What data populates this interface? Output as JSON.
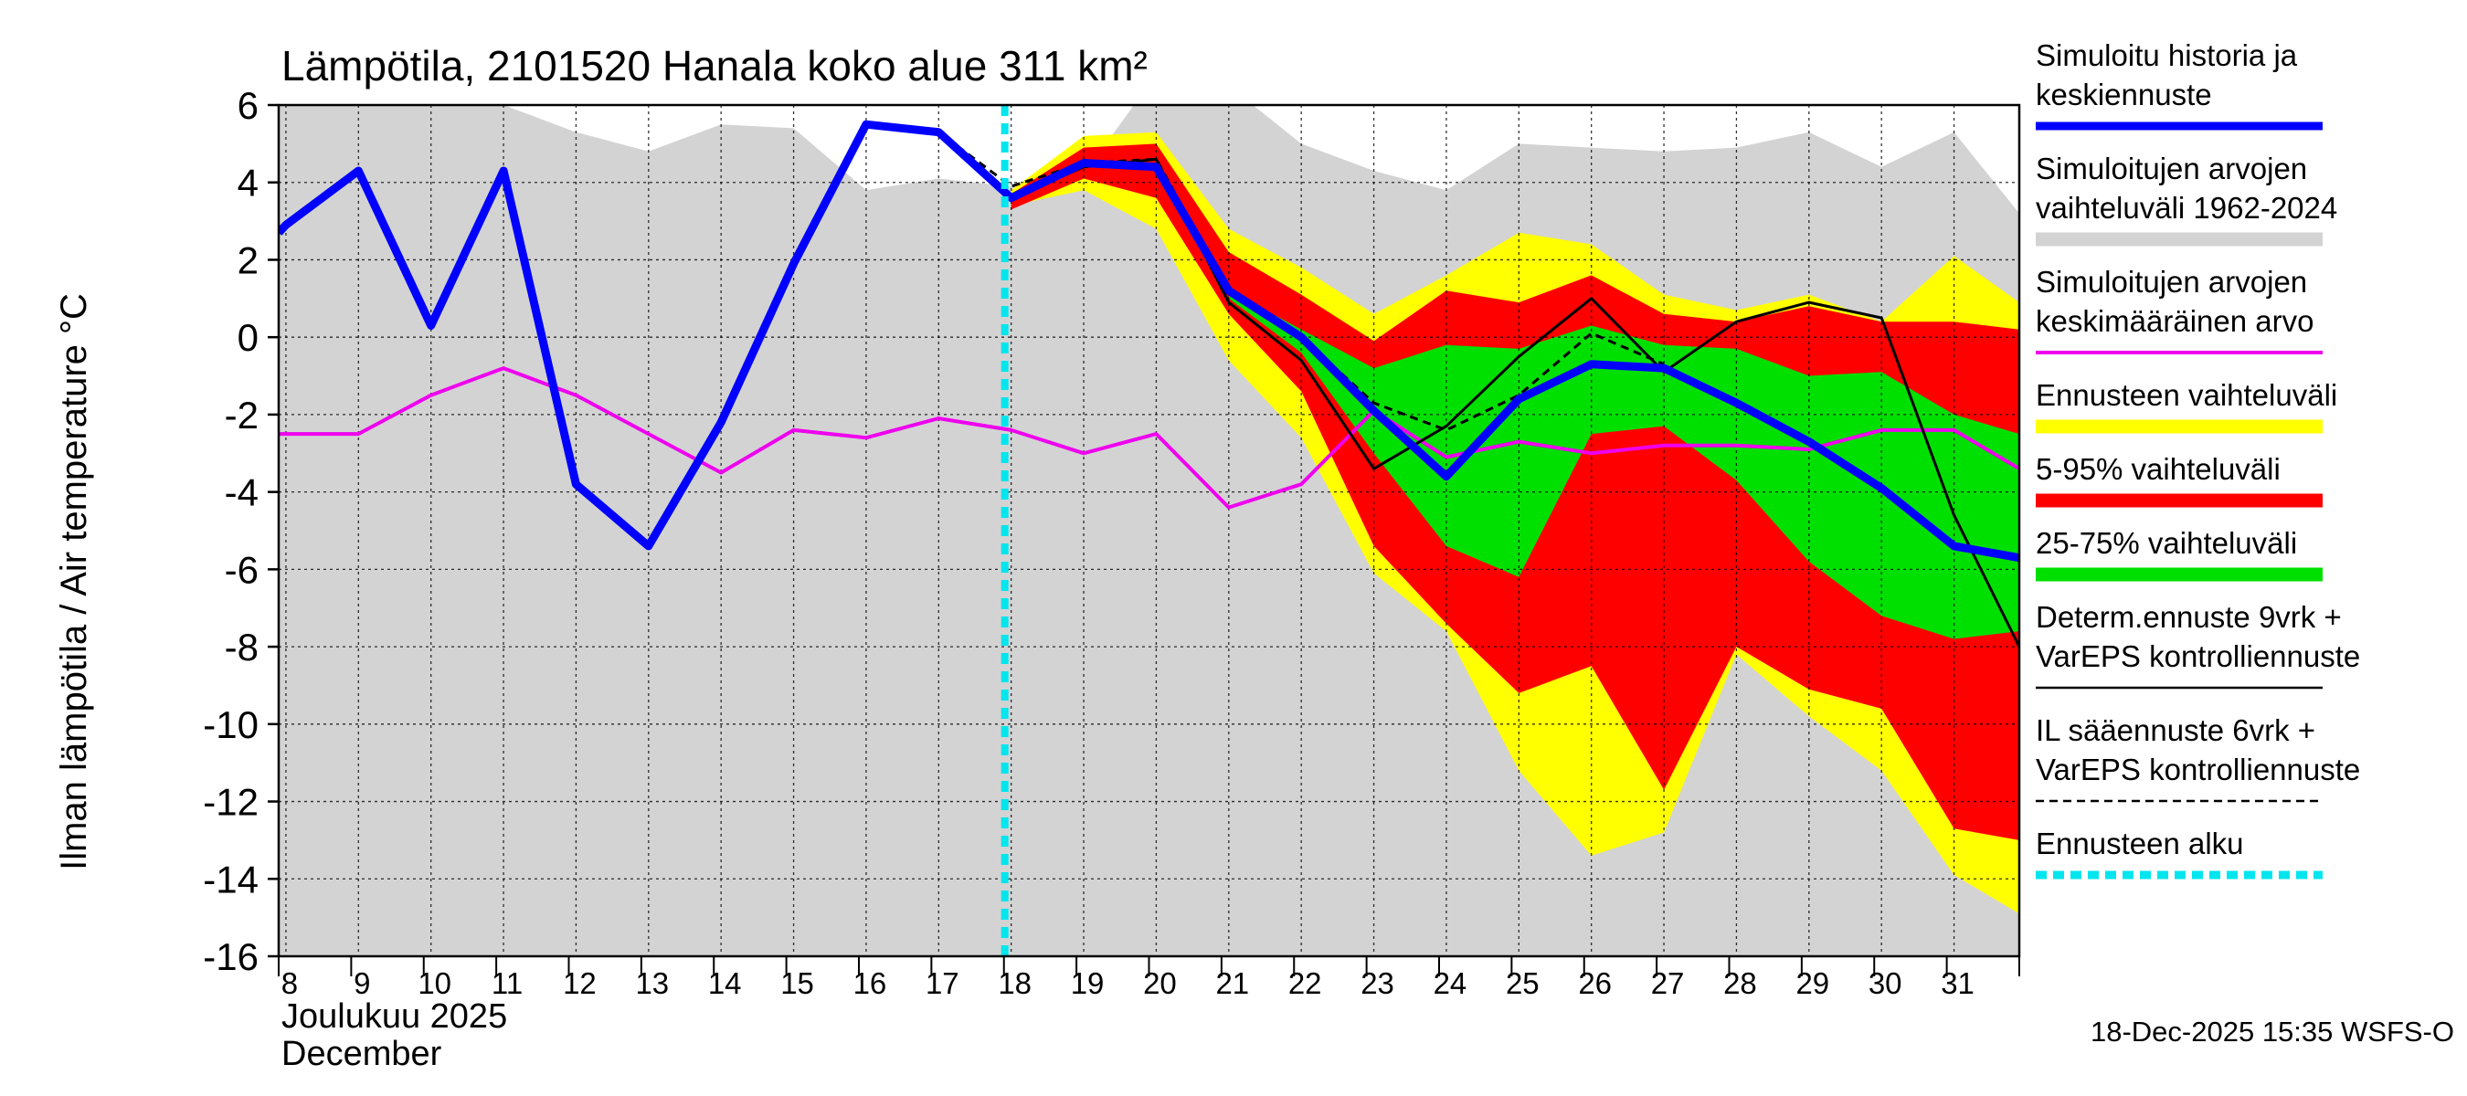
{
  "chart_data": {
    "type": "area",
    "title": "Lämpötila, 2101520 Hanala koko alue 311 km²",
    "ylabel": "Ilman lämpötila / Air temperature    °C",
    "xlabel_fi": "Joulukuu  2025",
    "xlabel_en": "December",
    "footer": "18-Dec-2025 15:35 WSFS-O",
    "ylim": [
      -16,
      6
    ],
    "yticks": [
      6,
      4,
      2,
      0,
      -2,
      -4,
      -6,
      -8,
      -10,
      -12,
      -14,
      -16
    ],
    "ytick_labels": [
      "6",
      "4",
      "2",
      "0",
      "-2",
      "-4",
      "-6",
      "-8",
      "-10",
      "-12",
      "-14",
      "-16"
    ],
    "xlim": [
      7.9,
      31.9
    ],
    "xticks": [
      8,
      9,
      10,
      11,
      12,
      13,
      14,
      15,
      16,
      17,
      18,
      19,
      20,
      21,
      22,
      23,
      24,
      25,
      26,
      27,
      28,
      29,
      30,
      31
    ],
    "xtick_labels": [
      "8",
      "9",
      "10",
      "11",
      "12",
      "13",
      "14",
      "15",
      "16",
      "17",
      "18",
      "19",
      "20",
      "21",
      "22",
      "23",
      "24",
      "25",
      "26",
      "27",
      "28",
      "29",
      "30",
      "31"
    ],
    "forecast_start": 18,
    "colors": {
      "hist_range": "#d3d3d3",
      "forecast_range": "#ffff00",
      "p5_95": "#ff0000",
      "p25_75": "#00e000",
      "sim": "#0000ff",
      "mean": "#ee00ee",
      "determ": "#000000",
      "il": "#000000",
      "start": "#00e5ee"
    },
    "legend": [
      {
        "key": "sim",
        "label": "Simuloitu historia ja\nkeskiennuste"
      },
      {
        "key": "hist_range",
        "label": "Simuloitujen arvojen\nvaihteluväli 1962-2024"
      },
      {
        "key": "mean",
        "label": "Simuloitujen arvojen\nkeskimääräinen arvo"
      },
      {
        "key": "forecast_range",
        "label": "Ennusteen vaihteluväli"
      },
      {
        "key": "p5_95",
        "label": "5-95% vaihteluväli"
      },
      {
        "key": "p25_75",
        "label": "25-75% vaihteluväli"
      },
      {
        "key": "determ",
        "label": "Determ.ennuste 9vrk +\nVarEPS kontrolliennuste"
      },
      {
        "key": "il",
        "label": "IL sääennuste 6vrk  +\nVarEPS kontrolliennuste"
      },
      {
        "key": "start",
        "label": "Ennusteen alku"
      }
    ],
    "series": [
      {
        "key": "hist_range",
        "name": "Simuloitujen arvojen vaihteluväli 1962-2024",
        "x": [
          7.9,
          8,
          9,
          10,
          11,
          12,
          13,
          14,
          15,
          16,
          17,
          18,
          19,
          20,
          21,
          22,
          23,
          24,
          25,
          26,
          27,
          28,
          29,
          30,
          31,
          31.9
        ],
        "upper": [
          6,
          6,
          6,
          6,
          6,
          5.3,
          4.8,
          5.5,
          5.4,
          3.8,
          4.1,
          3.9,
          4.2,
          6.8,
          6.5,
          5.0,
          4.3,
          3.8,
          5.0,
          4.9,
          4.8,
          4.9,
          5.3,
          4.4,
          5.3,
          3.2
        ],
        "lower": [
          -16,
          -16,
          -16,
          -16,
          -16,
          -16,
          -16,
          -16,
          -16,
          -16,
          -16,
          -16,
          -16,
          -16,
          -16,
          -16,
          -16,
          -16,
          -16,
          -16,
          -16,
          -16,
          -16,
          -16,
          -16,
          -16
        ]
      },
      {
        "key": "forecast_range",
        "name": "Ennusteen vaihteluväli",
        "x": [
          18,
          19,
          20,
          21,
          22,
          23,
          24,
          25,
          26,
          27,
          28,
          29,
          30,
          31,
          31.9
        ],
        "upper": [
          3.8,
          5.2,
          5.3,
          2.8,
          1.8,
          0.6,
          1.6,
          2.7,
          2.4,
          1.1,
          0.7,
          1.1,
          0.4,
          2.1,
          0.9
        ],
        "lower": [
          3.4,
          3.8,
          2.8,
          -0.6,
          -2.6,
          -6.1,
          -7.6,
          -11.2,
          -13.4,
          -12.8,
          -8.2,
          -9.8,
          -11.2,
          -13.9,
          -14.9
        ]
      },
      {
        "key": "p5_95",
        "name": "5-95% vaihteluväli",
        "x": [
          18,
          19,
          20,
          21,
          22,
          23,
          24,
          25,
          26,
          27,
          28,
          29,
          30,
          31,
          31.9
        ],
        "upper": [
          3.7,
          4.9,
          5.0,
          2.2,
          1.1,
          -0.1,
          1.2,
          0.9,
          1.6,
          0.6,
          0.4,
          0.8,
          0.4,
          0.4,
          0.2
        ],
        "lower": [
          3.3,
          4.1,
          3.6,
          0.6,
          -1.4,
          -5.4,
          -7.4,
          -9.2,
          -8.5,
          -11.7,
          -8.0,
          -9.1,
          -9.6,
          -12.7,
          -13.0
        ]
      },
      {
        "key": "p25_75",
        "name": "25-75% vaihteluväli",
        "x": [
          21,
          22,
          23,
          24,
          25,
          26,
          27,
          28,
          29,
          30,
          31,
          31.9
        ],
        "upper": [
          1.2,
          0.2,
          -0.8,
          -0.2,
          -0.3,
          0.3,
          -0.2,
          -0.3,
          -1.0,
          -0.9,
          -2.0,
          -2.5
        ],
        "lower": [
          1.0,
          -0.4,
          -3.0,
          -5.4,
          -6.2,
          -2.5,
          -2.3,
          -3.7,
          -5.8,
          -7.2,
          -7.8,
          -7.6
        ]
      },
      {
        "key": "mean",
        "name": "Simuloitujen arvojen keskimääräinen arvo",
        "x": [
          7.9,
          8,
          9,
          10,
          11,
          12,
          13,
          14,
          15,
          16,
          17,
          18,
          19,
          20,
          21,
          22,
          23,
          24,
          25,
          26,
          27,
          28,
          29,
          30,
          31,
          31.9
        ],
        "y": [
          -2.5,
          -2.5,
          -2.5,
          -1.5,
          -0.8,
          -1.5,
          -2.5,
          -3.5,
          -2.4,
          -2.6,
          -2.1,
          -2.4,
          -3.0,
          -2.5,
          -4.4,
          -3.8,
          -1.9,
          -3.1,
          -2.7,
          -3.0,
          -2.8,
          -2.8,
          -2.9,
          -2.4,
          -2.4,
          -3.4
        ]
      },
      {
        "key": "determ",
        "name": "Determ.ennuste 9vrk + VarEPS kontrolliennuste",
        "x": [
          16,
          17,
          18,
          19,
          20,
          21,
          22,
          23,
          24,
          25,
          26,
          27,
          28,
          29,
          30,
          31,
          31.9
        ],
        "y": [
          5.5,
          5.3,
          3.6,
          4.4,
          4.6,
          0.9,
          -0.6,
          -3.4,
          -2.3,
          -0.5,
          1.0,
          -0.9,
          0.4,
          0.9,
          0.5,
          -4.6,
          -8.0
        ]
      },
      {
        "key": "il",
        "name": "IL sääennuste 6vrk + VarEPS kontrolliennuste",
        "x": [
          16,
          17,
          18,
          19,
          20,
          21,
          22,
          23,
          24,
          25,
          26,
          27
        ],
        "y": [
          5.5,
          5.3,
          3.9,
          4.5,
          4.6,
          1.2,
          0.0,
          -1.7,
          -2.4,
          -1.5,
          0.1,
          -0.7
        ]
      },
      {
        "key": "sim",
        "name": "Simuloitu historia ja keskiennuste",
        "x": [
          7.9,
          8,
          9,
          10,
          11,
          12,
          13,
          14,
          15,
          16,
          17,
          18,
          19,
          20,
          21,
          22,
          23,
          24,
          25,
          26,
          27,
          28,
          29,
          30,
          31,
          31.9
        ],
        "y": [
          2.7,
          2.9,
          4.3,
          0.3,
          4.3,
          -3.8,
          -5.4,
          -2.2,
          1.9,
          5.5,
          5.3,
          3.6,
          4.5,
          4.4,
          1.2,
          0.0,
          -1.9,
          -3.6,
          -1.6,
          -0.7,
          -0.8,
          -1.7,
          -2.7,
          -3.9,
          -5.4,
          -5.7
        ]
      }
    ]
  }
}
